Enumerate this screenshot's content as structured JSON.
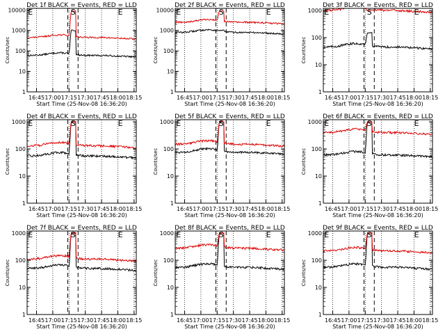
{
  "chart_data": [
    {
      "type": "line",
      "title": "Det 1f BLACK = Events, RED = LLD",
      "xlabel": "Start Time (25-Nov-08 16:36:20)",
      "ylabel": "Counts/sec",
      "x_ticks": [
        "16:45",
        "17:00",
        "17:15",
        "17:30",
        "17:45",
        "18:00",
        "18:15"
      ],
      "y_ticks": [
        "1",
        "10",
        "100",
        "1000",
        "10000"
      ],
      "ylim": [
        1,
        12000
      ],
      "y_scale": "log",
      "markers": [
        "E",
        "S",
        "E"
      ],
      "series": [
        {
          "color": "#000000",
          "baseline": 60,
          "peak": 1000
        },
        {
          "color": "#dd0000",
          "baseline": 450,
          "peak": 9000
        }
      ]
    },
    {
      "type": "line",
      "title": "Det 2f BLACK = Events, RED = LLD",
      "xlabel": "Start Time (25-Nov-08 16:36:20)",
      "ylabel": "Counts/sec",
      "x_ticks": [
        "16:45",
        "17:00",
        "17:15",
        "17:30",
        "17:45",
        "18:00",
        "18:15"
      ],
      "y_ticks": [
        "1",
        "10",
        "100",
        "1000",
        "10000"
      ],
      "ylim": [
        1,
        12000
      ],
      "y_scale": "log",
      "markers": [
        "E",
        "S",
        "E"
      ],
      "series": [
        {
          "color": "#000000",
          "baseline": 800,
          "peak": 1000
        },
        {
          "color": "#dd0000",
          "baseline": 2500,
          "peak": 9000
        }
      ]
    },
    {
      "type": "line",
      "title": "Det 3f BLACK = Events, RED = LLD",
      "xlabel": "Start Time (25-Nov-08 16:36:20)",
      "ylabel": "Counts/sec",
      "x_ticks": [
        "16:45",
        "17:00",
        "17:15",
        "17:30",
        "17:45",
        "18:00",
        "18:15"
      ],
      "y_ticks": [
        "1",
        "10",
        "100",
        "1000"
      ],
      "ylim": [
        1,
        1200
      ],
      "y_scale": "log",
      "markers": [
        "E",
        "S",
        "E"
      ],
      "series": [
        {
          "color": "#000000",
          "baseline": 45,
          "peak": 150
        },
        {
          "color": "#dd0000",
          "baseline": 1000,
          "peak": 1000
        }
      ]
    },
    {
      "type": "line",
      "title": "Det 4f BLACK = Events, RED = LLD",
      "xlabel": "Start Time (25-Nov-08 16:36:20)",
      "ylabel": "Counts/sec",
      "x_ticks": [
        "16:45",
        "17:00",
        "17:15",
        "17:30",
        "17:45",
        "18:00",
        "18:15"
      ],
      "y_ticks": [
        "1",
        "10",
        "100",
        "1000"
      ],
      "ylim": [
        1,
        1200
      ],
      "y_scale": "log",
      "markers": [
        "E",
        "S",
        "E"
      ],
      "series": [
        {
          "color": "#000000",
          "baseline": 55,
          "peak": 1000
        },
        {
          "color": "#dd0000",
          "baseline": 130,
          "peak": 1000
        }
      ]
    },
    {
      "type": "line",
      "title": "Det 5f BLACK = Events, RED = LLD",
      "xlabel": "Start Time (25-Nov-08 16:36:20)",
      "ylabel": "Counts/sec",
      "x_ticks": [
        "16:45",
        "17:00",
        "17:15",
        "17:30",
        "17:45",
        "18:00",
        "18:15"
      ],
      "y_ticks": [
        "1",
        "10",
        "100",
        "1000"
      ],
      "ylim": [
        1,
        1200
      ],
      "y_scale": "log",
      "markers": [
        "E",
        "S",
        "E"
      ],
      "series": [
        {
          "color": "#000000",
          "baseline": 75,
          "peak": 1000
        },
        {
          "color": "#dd0000",
          "baseline": 150,
          "peak": 1000
        }
      ]
    },
    {
      "type": "line",
      "title": "Det 6f BLACK = Events, RED = LLD",
      "xlabel": "Start Time (25-Nov-08 16:36:20)",
      "ylabel": "Counts/sec",
      "x_ticks": [
        "16:45",
        "17:00",
        "17:15",
        "17:30",
        "17:45",
        "18:00",
        "18:15"
      ],
      "y_ticks": [
        "1",
        "10",
        "100",
        "1000"
      ],
      "ylim": [
        1,
        1200
      ],
      "y_scale": "log",
      "markers": [
        "E",
        "S",
        "E"
      ],
      "series": [
        {
          "color": "#000000",
          "baseline": 60,
          "peak": 1000
        },
        {
          "color": "#dd0000",
          "baseline": 400,
          "peak": 1000
        }
      ]
    },
    {
      "type": "line",
      "title": "Det 7f BLACK = Events, RED = LLD",
      "xlabel": "Start Time (25-Nov-08 16:36:20)",
      "ylabel": "Counts/sec",
      "x_ticks": [
        "16:45",
        "17:00",
        "17:15",
        "17:30",
        "17:45",
        "18:00",
        "18:15"
      ],
      "y_ticks": [
        "1",
        "10",
        "100",
        "1000"
      ],
      "ylim": [
        1,
        1200
      ],
      "y_scale": "log",
      "markers": [
        "E",
        "S",
        "E"
      ],
      "series": [
        {
          "color": "#000000",
          "baseline": 50,
          "peak": 1000
        },
        {
          "color": "#dd0000",
          "baseline": 110,
          "peak": 1000
        }
      ]
    },
    {
      "type": "line",
      "title": "Det 8f BLACK = Events, RED = LLD",
      "xlabel": "Start Time (25-Nov-08 16:36:20)",
      "ylabel": "Counts/sec",
      "x_ticks": [
        "16:45",
        "17:00",
        "17:15",
        "17:30",
        "17:45",
        "18:00",
        "18:15"
      ],
      "y_ticks": [
        "1",
        "10",
        "100",
        "1000"
      ],
      "ylim": [
        1,
        1200
      ],
      "y_scale": "log",
      "markers": [
        "E",
        "S",
        "E"
      ],
      "series": [
        {
          "color": "#000000",
          "baseline": 55,
          "peak": 1000
        },
        {
          "color": "#dd0000",
          "baseline": 280,
          "peak": 1000
        }
      ]
    },
    {
      "type": "line",
      "title": "Det 9f BLACK = Events, RED = LLD",
      "xlabel": "Start Time (25-Nov-08 16:36:20)",
      "ylabel": "Counts/sec",
      "x_ticks": [
        "16:45",
        "17:00",
        "17:15",
        "17:30",
        "17:45",
        "18:00",
        "18:15"
      ],
      "y_ticks": [
        "1",
        "10",
        "100",
        "1000"
      ],
      "ylim": [
        1,
        1200
      ],
      "y_scale": "log",
      "markers": [
        "E",
        "S",
        "E"
      ],
      "series": [
        {
          "color": "#000000",
          "baseline": 55,
          "peak": 1000
        },
        {
          "color": "#dd0000",
          "baseline": 220,
          "peak": 1000
        }
      ]
    }
  ]
}
